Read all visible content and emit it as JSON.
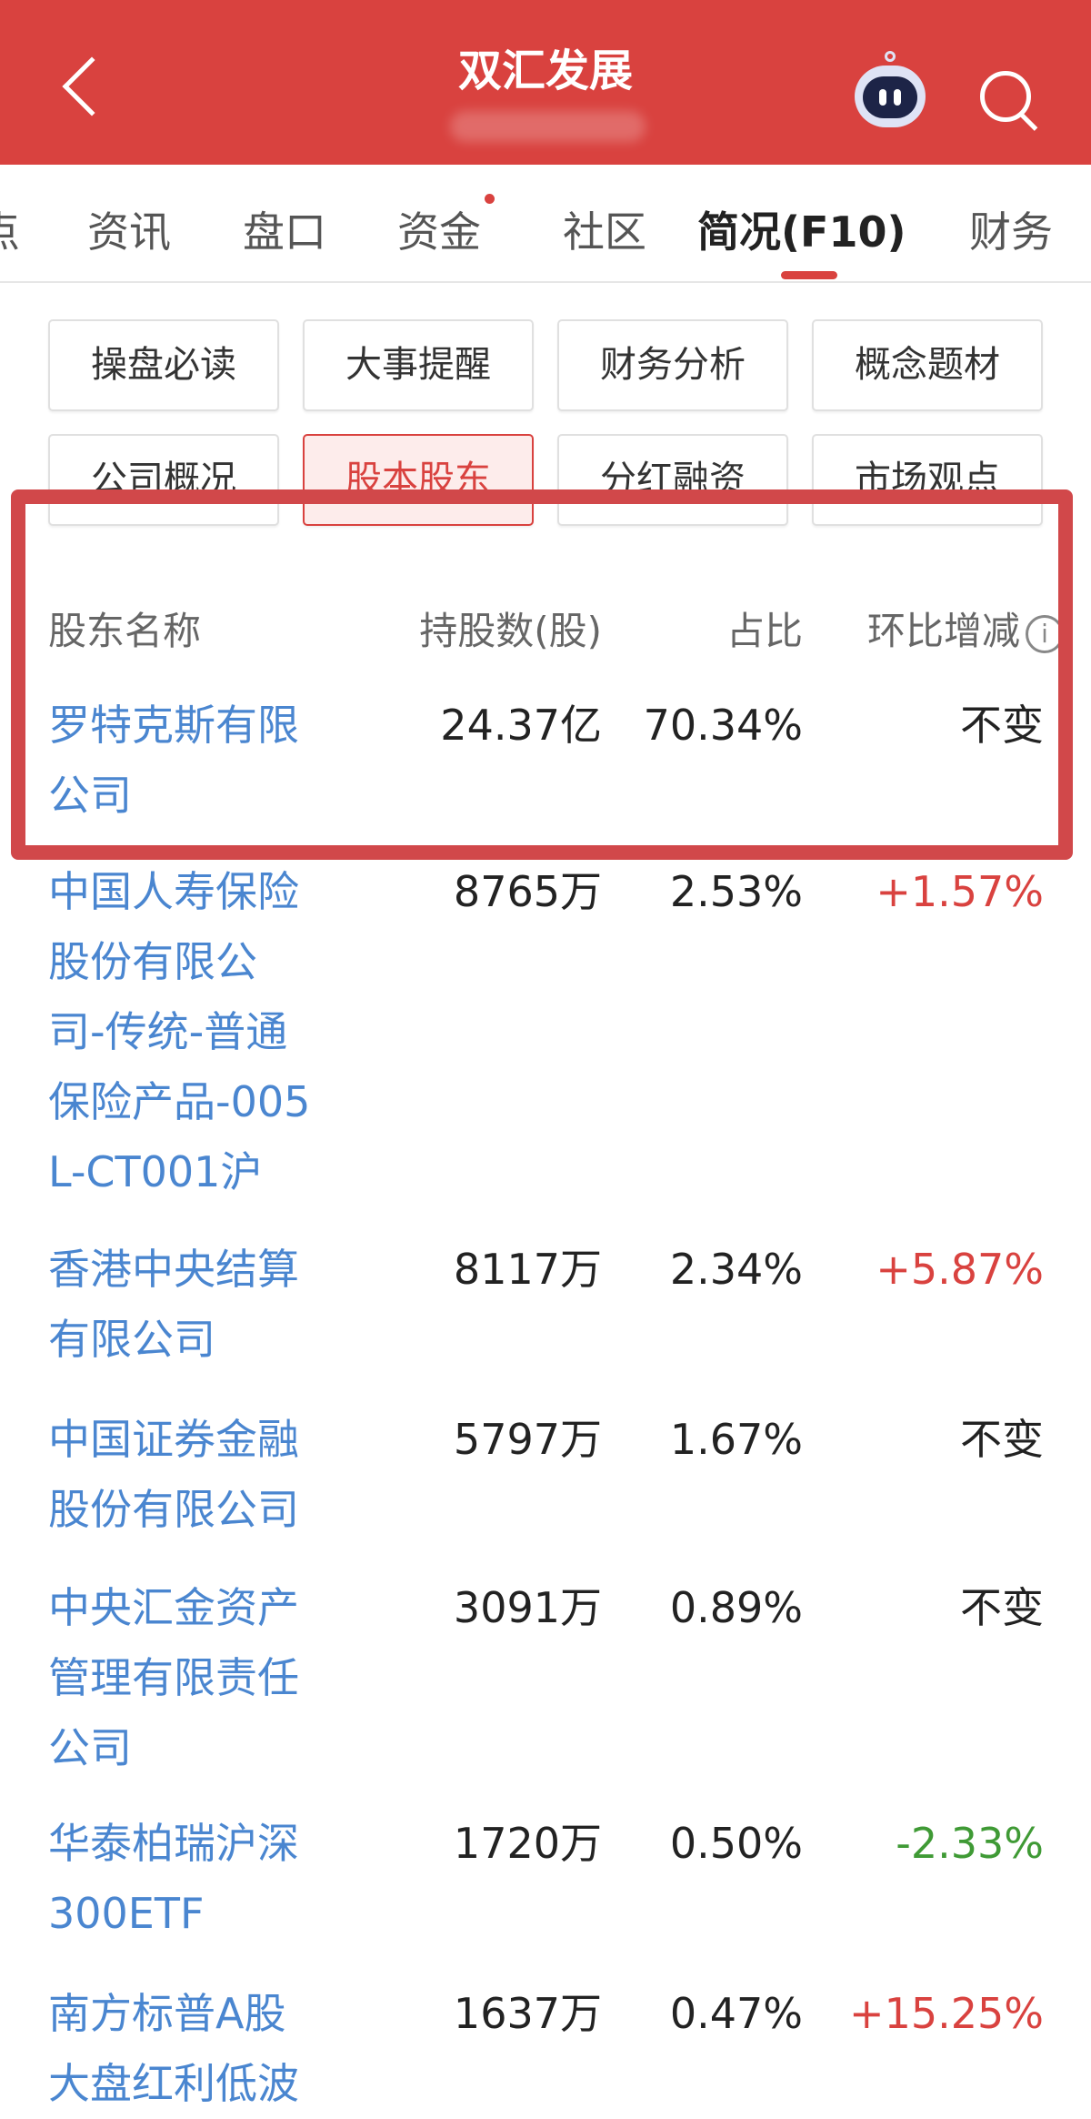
{
  "header": {
    "title": "双汇发展",
    "back_icon": "chevron-left-icon",
    "assistant_icon": "robot-icon",
    "search_icon": "search-icon"
  },
  "tabs": [
    {
      "label": "点"
    },
    {
      "label": "资讯"
    },
    {
      "label": "盘口"
    },
    {
      "label": "资金",
      "badge_dot": true
    },
    {
      "label": "社区"
    },
    {
      "label": "简况(F10)",
      "active": true
    },
    {
      "label": "财务"
    }
  ],
  "sub_buttons": [
    {
      "label": "操盘必读"
    },
    {
      "label": "大事提醒"
    },
    {
      "label": "财务分析"
    },
    {
      "label": "概念题材"
    },
    {
      "label": "公司概况"
    },
    {
      "label": "股本股东",
      "selected": true
    },
    {
      "label": "分红融资"
    },
    {
      "label": "市场观点"
    }
  ],
  "table": {
    "columns": [
      "股东名称",
      "持股数(股)",
      "占比",
      "环比增减"
    ],
    "info_icon": "i",
    "rows": [
      {
        "name_lines": [
          "罗特克斯有限",
          "公司"
        ],
        "shares": "24.37亿",
        "ratio": "70.34%",
        "change": "不变"
      },
      {
        "name_lines": [
          "中国人寿保险",
          "股份有限公",
          "司-传统-普通",
          "保险产品-005",
          "L-CT001沪"
        ],
        "shares": "8765万",
        "ratio": "2.53%",
        "change": "+1.57%"
      },
      {
        "name_lines": [
          "香港中央结算",
          "有限公司"
        ],
        "shares": "8117万",
        "ratio": "2.34%",
        "change": "+5.87%"
      },
      {
        "name_lines": [
          "中国证券金融",
          "股份有限公司"
        ],
        "shares": "5797万",
        "ratio": "1.67%",
        "change": "不变"
      },
      {
        "name_lines": [
          "中央汇金资产",
          "管理有限责任",
          "公司"
        ],
        "shares": "3091万",
        "ratio": "0.89%",
        "change": "不变"
      },
      {
        "name_lines": [
          "华泰柏瑞沪深",
          "300ETF"
        ],
        "shares": "1720万",
        "ratio": "0.50%",
        "change": "-2.33%"
      },
      {
        "name_lines": [
          "南方标普A股",
          "大盘红利低波"
        ],
        "shares": "1637万",
        "ratio": "0.47%",
        "change": "+15.25%"
      }
    ]
  },
  "colors": {
    "brand_red": "#d9423f",
    "link_blue": "#4a86d0",
    "up_red": "#d9423f",
    "down_green": "#3f9a35",
    "highlight_box": "#d1484a"
  }
}
